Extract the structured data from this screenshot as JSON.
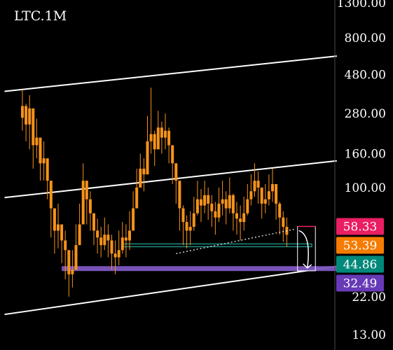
{
  "chart_data": {
    "type": "candlestick",
    "title": "LTC.1M",
    "scale": "log",
    "ylim": [
      10.5,
      1350
    ],
    "y_ticks": [
      "1300.00",
      "800.00",
      "480.00",
      "280.00",
      "160.00",
      "100.00",
      "22.00",
      "13.00"
    ],
    "price_badges": [
      {
        "label": "58.33",
        "value": 58.33,
        "color": "#e91e63"
      },
      {
        "label": "53.39",
        "value": 53.39,
        "color": "#f57c00"
      },
      {
        "label": "44.86",
        "value": 44.86,
        "color": "#00897b"
      },
      {
        "label": "32.49",
        "value": 32.49,
        "color": "#673ab7"
      }
    ],
    "series": [
      {
        "color": "#f7931a",
        "closes": [
          310,
          240,
          300,
          180,
          200,
          140,
          150,
          110,
          75,
          55,
          60,
          48,
          42,
          30,
          32,
          45,
          60,
          110,
          85,
          70,
          55,
          50,
          45,
          52,
          48,
          40,
          38,
          42,
          50,
          48,
          55,
          75,
          100,
          130,
          120,
          190,
          210,
          170,
          230,
          200,
          220,
          180,
          140,
          110,
          75,
          62,
          55,
          58,
          70,
          85,
          78,
          90,
          80,
          72,
          66,
          80,
          85,
          75,
          90,
          70,
          65,
          62,
          70,
          85,
          95,
          110,
          100,
          80,
          85,
          95,
          105,
          80,
          66,
          58,
          52
        ],
        "highs": [
          390,
          320,
          360,
          240,
          260,
          180,
          190,
          140,
          95,
          70,
          80,
          60,
          55,
          40,
          42,
          60,
          80,
          140,
          110,
          95,
          70,
          65,
          58,
          66,
          60,
          52,
          48,
          55,
          62,
          60,
          72,
          95,
          130,
          160,
          150,
          270,
          400,
          220,
          290,
          250,
          280,
          230,
          175,
          140,
          95,
          78,
          68,
          72,
          88,
          110,
          98,
          110,
          100,
          90,
          82,
          100,
          110,
          95,
          115,
          92,
          82,
          78,
          88,
          105,
          120,
          140,
          125,
          100,
          105,
          120,
          130,
          100,
          82,
          72,
          66
        ],
        "lows": [
          220,
          190,
          170,
          130,
          150,
          110,
          110,
          85,
          50,
          40,
          43,
          35,
          28,
          22,
          25,
          33,
          45,
          80,
          60,
          55,
          45,
          40,
          38,
          42,
          38,
          32,
          30,
          34,
          40,
          38,
          42,
          55,
          80,
          100,
          95,
          145,
          160,
          135,
          180,
          160,
          170,
          140,
          105,
          80,
          55,
          45,
          43,
          45,
          55,
          68,
          62,
          70,
          64,
          58,
          52,
          62,
          68,
          60,
          70,
          55,
          52,
          48,
          55,
          68,
          78,
          88,
          80,
          65,
          70,
          78,
          82,
          64,
          52,
          47,
          44
        ]
      }
    ],
    "channel_lines": [
      {
        "from": {
          "bar": -5,
          "value": 380
        },
        "to": {
          "bar": 88,
          "value": 620
        },
        "color": "#ffffff"
      },
      {
        "from": {
          "bar": -5,
          "value": 87
        },
        "to": {
          "bar": 88,
          "value": 145
        },
        "color": "#ffffff"
      },
      {
        "from": {
          "bar": -5,
          "value": 17.2
        },
        "to": {
          "bar": 88,
          "value": 33.5
        },
        "color": "#ffffff"
      }
    ],
    "support_lines": [
      {
        "value": 44.86,
        "start_bar": 28,
        "end_bar": 81,
        "color": "#26a69a"
      },
      {
        "value": 32.49,
        "start_bar": 11,
        "end_bar": 88,
        "color": "#7e57c2"
      }
    ],
    "dotted_trendline": {
      "from": {
        "bar": 43,
        "value": 40
      },
      "to": {
        "bar": 76,
        "value": 56
      },
      "color": "#ffffff"
    },
    "projection_box": {
      "start_bar": 77,
      "end_bar": 82,
      "top": 58.33,
      "bottom": 31.5,
      "color": "#ffffff"
    },
    "grid": false
  }
}
